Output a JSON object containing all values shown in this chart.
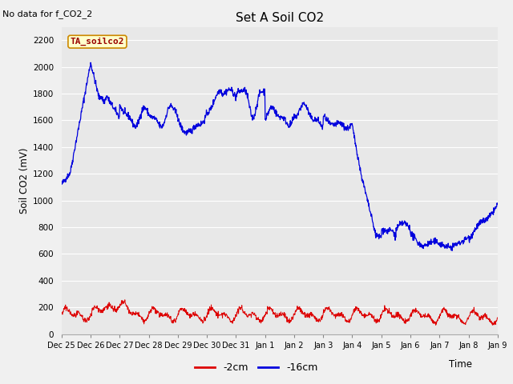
{
  "title": "Set A Soil CO2",
  "no_data_label": "No data for f_CO2_2",
  "ylabel": "Soil CO2 (mV)",
  "xlabel": "Time",
  "legend_label": "TA_soilco2",
  "ylim": [
    0,
    2300
  ],
  "yticks": [
    0,
    200,
    400,
    600,
    800,
    1000,
    1200,
    1400,
    1600,
    1800,
    2000,
    2200
  ],
  "line_color_red": "#dd0000",
  "line_color_blue": "#0000dd",
  "legend_entries": [
    "-2cm",
    "-16cm"
  ],
  "legend_colors": [
    "#dd0000",
    "#0000dd"
  ],
  "x_labels": [
    "Dec 25",
    "Dec 26",
    "Dec 27",
    "Dec 28",
    "Dec 29",
    "Dec 30",
    "Dec 31",
    "Jan 1",
    "Jan 2",
    "Jan 3",
    "Jan 4",
    "Jan 5",
    "Jan 6",
    "Jan 7",
    "Jan 8",
    "Jan 9"
  ],
  "fig_width": 6.4,
  "fig_height": 4.8,
  "dpi": 100
}
